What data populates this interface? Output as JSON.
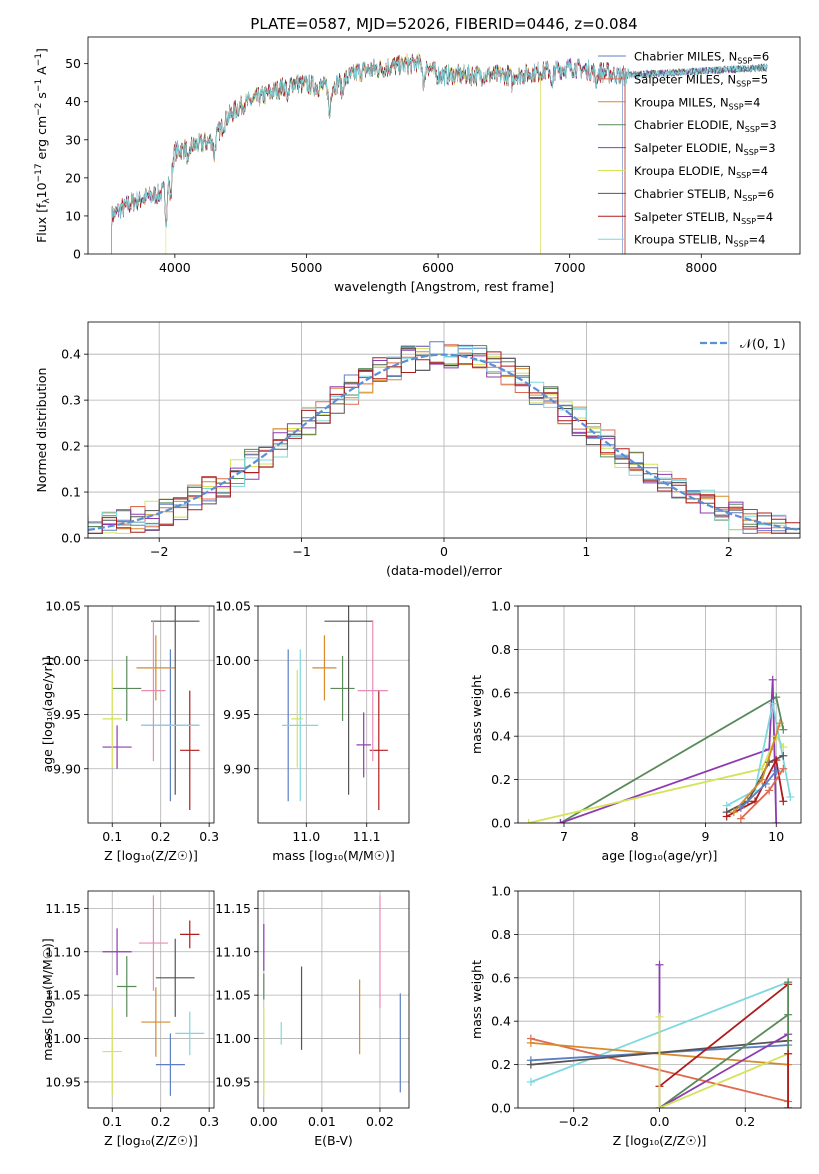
{
  "colors": {
    "Chabrier MILES": "#5b7fc4",
    "Salpeter MILES": "#e06a50",
    "Kroupa MILES": "#d68a2c",
    "Chabrier ELODIE": "#5a8a5a",
    "Salpeter ELODIE": "#8e3bb0",
    "Kroupa ELODIE": "#d4e35a",
    "Chabrier STELIB": "#555555",
    "Salpeter STELIB": "#b01c1c",
    "Kroupa STELIB": "#7fd8df",
    "pink": "#e98bb4",
    "gauss": "#5b8fd6"
  },
  "chart_data": [
    {
      "id": "spectrum",
      "type": "line",
      "title": "PLATE=0587, MJD=52026, FIBERID=0446, z=0.084",
      "xlabel": "wavelength [Angstrom, rest frame]",
      "ylabel_parts": [
        "Flux [f",
        "λ",
        "10",
        "−17",
        " erg cm",
        "−2",
        " s",
        "−1",
        " A",
        "−1",
        "]"
      ],
      "xlim": [
        3340,
        8750
      ],
      "ylim": [
        0,
        57
      ],
      "xticks": [
        "4000",
        "5000",
        "6000",
        "7000",
        "8000"
      ],
      "yticks": [
        "0",
        "10",
        "20",
        "30",
        "40",
        "50"
      ],
      "legend_position": "top-right",
      "legend": [
        {
          "base": "Chabrier MILES, N",
          "sub": "SSP",
          "end": "=6"
        },
        {
          "base": "Salpeter MILES, N",
          "sub": "SSP",
          "end": "=5"
        },
        {
          "base": "Kroupa MILES, N",
          "sub": "SSP",
          "end": "=4"
        },
        {
          "base": "Chabrier ELODIE, N",
          "sub": "SSP",
          "end": "=3"
        },
        {
          "base": "Salpeter ELODIE, N",
          "sub": "SSP",
          "end": "=3"
        },
        {
          "base": "Kroupa ELODIE, N",
          "sub": "SSP",
          "end": "=4"
        },
        {
          "base": "Chabrier STELIB, N",
          "sub": "SSP",
          "end": "=6"
        },
        {
          "base": "Salpeter STELIB, N",
          "sub": "SSP",
          "end": "=4"
        },
        {
          "base": "Kroupa STELIB, N",
          "sub": "SSP",
          "end": "=4"
        }
      ],
      "continuum": {
        "x": [
          3520,
          3600,
          3700,
          3800,
          3900,
          3950,
          4000,
          4100,
          4200,
          4300,
          4400,
          4500,
          4700,
          4900,
          5100,
          5200,
          5400,
          5600,
          5800,
          5900,
          6000,
          6200,
          6400,
          6600,
          6800,
          7000,
          7200,
          7400
        ],
        "y": [
          10,
          12,
          14,
          15,
          16,
          19,
          27,
          28,
          29,
          30,
          36,
          39,
          42,
          45,
          44,
          44,
          48,
          49,
          50,
          50,
          47,
          47,
          47,
          47,
          48,
          49,
          48,
          47
        ]
      },
      "ranges": {
        "Chabrier MILES": [
          3520,
          7400
        ],
        "Salpeter MILES": [
          3520,
          7420
        ],
        "Kroupa MILES": [
          3520,
          6780
        ],
        "Chabrier ELODIE": [
          3520,
          8500
        ],
        "Salpeter ELODIE": [
          3520,
          8500
        ],
        "Kroupa ELODIE": [
          3930,
          6780
        ],
        "Chabrier STELIB": [
          3520,
          8500
        ],
        "Salpeter STELIB": [
          3520,
          7420
        ],
        "Kroupa STELIB": [
          3520,
          8500
        ]
      }
    },
    {
      "id": "residuals",
      "type": "line",
      "xlabel": "(data-model)/error",
      "ylabel": "Normed distribution",
      "xlim": [
        -2.5,
        2.5
      ],
      "ylim": [
        0,
        0.47
      ],
      "xticks": [
        "−2",
        "−1",
        "0",
        "1",
        "2"
      ],
      "yticks": [
        "0.0",
        "0.1",
        "0.2",
        "0.3",
        "0.4"
      ],
      "legend_position": "top-right",
      "gauss_label": "𝒩(0, 1)",
      "bin_width": 0.1
    },
    {
      "id": "age-Z",
      "type": "scatter",
      "xlabel": "Z [log₁₀(Z/Z☉)]",
      "ylabel": "age  [log₁₀(age/yr)]",
      "xlim": [
        0.05,
        0.31
      ],
      "ylim": [
        9.85,
        10.05
      ],
      "xticks": [
        "0.1",
        "0.2",
        "0.3"
      ],
      "yticks": [
        "9.90",
        "9.95",
        "10.00",
        "10.05"
      ],
      "points": [
        {
          "s": "Chabrier MILES",
          "x": 0.22,
          "y": 9.94,
          "xe": 0.06,
          "ye": 0.07
        },
        {
          "s": "Salpeter MILES",
          "x": 0.17,
          "y": 9.97,
          "xe": 0.0,
          "ye": 0.0
        },
        {
          "s": "Kroupa MILES",
          "x": 0.19,
          "y": 9.993,
          "xe": 0.04,
          "ye": 0.03
        },
        {
          "s": "Chabrier ELODIE",
          "x": 0.13,
          "y": 9.974,
          "xe": 0.03,
          "ye": 0.03
        },
        {
          "s": "Salpeter ELODIE",
          "x": 0.11,
          "y": 9.92,
          "xe": 0.03,
          "ye": 0.02
        },
        {
          "s": "Kroupa ELODIE",
          "x": 0.1,
          "y": 9.946,
          "xe": 0.02,
          "ye": 0.045
        },
        {
          "s": "Chabrier STELIB",
          "x": 0.23,
          "y": 10.036,
          "xe": 0.05,
          "ye": 0.16
        },
        {
          "s": "Salpeter STELIB",
          "x": 0.26,
          "y": 9.917,
          "xe": 0.02,
          "ye": 0.055
        },
        {
          "s": "Kroupa STELIB",
          "x": 0.22,
          "y": 9.94,
          "xe": 0.06,
          "ye": 0.0
        },
        {
          "s": "pink",
          "x": 0.185,
          "y": 9.972,
          "xe": 0.025,
          "ye": 0.065
        }
      ]
    },
    {
      "id": "age-mass",
      "type": "scatter",
      "xlabel": "mass [log₁₀(M/M☉)]",
      "xlim": [
        10.92,
        11.17
      ],
      "ylim": [
        9.85,
        10.05
      ],
      "xticks": [
        "11.0",
        "11.1"
      ],
      "yticks": [
        "9.90",
        "9.95",
        "10.00",
        "10.05"
      ],
      "points": [
        {
          "s": "Chabrier MILES",
          "x": 10.97,
          "y": 9.94,
          "xe": 0.0,
          "ye": 0.07
        },
        {
          "s": "Kroupa MILES",
          "x": 11.03,
          "y": 9.993,
          "xe": 0.02,
          "ye": 0.03
        },
        {
          "s": "Chabrier ELODIE",
          "x": 11.06,
          "y": 9.974,
          "xe": 0.02,
          "ye": 0.03
        },
        {
          "s": "Salpeter ELODIE",
          "x": 11.095,
          "y": 9.922,
          "xe": 0.012,
          "ye": 0.03
        },
        {
          "s": "Kroupa ELODIE",
          "x": 10.985,
          "y": 9.946,
          "xe": 0.01,
          "ye": 0.045
        },
        {
          "s": "Chabrier STELIB",
          "x": 11.07,
          "y": 10.036,
          "xe": 0.04,
          "ye": 0.16
        },
        {
          "s": "Salpeter STELIB",
          "x": 11.12,
          "y": 9.917,
          "xe": 0.015,
          "ye": 0.055
        },
        {
          "s": "Kroupa STELIB",
          "x": 10.99,
          "y": 9.94,
          "xe": 0.03,
          "ye": 0.07
        },
        {
          "s": "pink",
          "x": 11.11,
          "y": 9.972,
          "xe": 0.025,
          "ye": 0.065
        }
      ]
    },
    {
      "id": "weight-age",
      "type": "line",
      "xlabel": "age  [log₁₀(age/yr)]",
      "ylabel": "mass weight",
      "xlim": [
        6.35,
        10.35
      ],
      "ylim": [
        0,
        1
      ],
      "xticks": [
        "7",
        "8",
        "9",
        "10"
      ],
      "yticks": [
        "0.0",
        "0.2",
        "0.4",
        "0.6",
        "0.8",
        "1.0"
      ],
      "series": [
        {
          "s": "Chabrier ELODIE",
          "x": [
            6.95,
            10.0,
            10.1
          ],
          "y": [
            0.0,
            0.58,
            0.43
          ]
        },
        {
          "s": "Salpeter ELODIE",
          "x": [
            6.95,
            9.9,
            9.95,
            10.0
          ],
          "y": [
            0.0,
            0.34,
            0.66,
            0.0
          ]
        },
        {
          "s": "Kroupa ELODIE",
          "x": [
            6.5,
            9.8,
            10.0,
            10.1
          ],
          "y": [
            0.0,
            0.25,
            0.4,
            0.35
          ]
        },
        {
          "s": "Kroupa STELIB",
          "x": [
            9.3,
            9.7,
            9.95,
            10.2
          ],
          "y": [
            0.08,
            0.15,
            0.55,
            0.12
          ]
        },
        {
          "s": "Chabrier STELIB",
          "x": [
            9.3,
            9.6,
            9.9,
            10.1
          ],
          "y": [
            0.05,
            0.1,
            0.28,
            0.31
          ]
        },
        {
          "s": "Salpeter STELIB",
          "x": [
            9.3,
            9.7,
            10.0,
            10.1
          ],
          "y": [
            0.03,
            0.1,
            0.29,
            0.1
          ]
        },
        {
          "s": "Kroupa MILES",
          "x": [
            9.4,
            9.8,
            10.05
          ],
          "y": [
            0.05,
            0.2,
            0.46
          ]
        },
        {
          "s": "Salpeter MILES",
          "x": [
            9.5,
            9.9,
            10.1
          ],
          "y": [
            0.02,
            0.15,
            0.25
          ]
        },
        {
          "s": "Chabrier MILES",
          "x": [
            9.5,
            9.85,
            10.0
          ],
          "y": [
            0.07,
            0.18,
            0.24
          ]
        }
      ]
    },
    {
      "id": "mass-Z",
      "type": "scatter",
      "xlabel": "Z [log₁₀(Z/Z☉)]",
      "ylabel": "mass [log₁₀(M/M☉)]",
      "xlim": [
        0.05,
        0.31
      ],
      "ylim": [
        10.92,
        11.17
      ],
      "xticks": [
        "0.1",
        "0.2",
        "0.3"
      ],
      "yticks": [
        "10.95",
        "11.00",
        "11.05",
        "11.10",
        "11.15"
      ],
      "points": [
        {
          "s": "Chabrier MILES",
          "x": 0.22,
          "y": 10.97,
          "xe": 0.03,
          "ye": 0.036
        },
        {
          "s": "Kroupa MILES",
          "x": 0.19,
          "y": 11.019,
          "xe": 0.03,
          "ye": 0.04
        },
        {
          "s": "Chabrier ELODIE",
          "x": 0.13,
          "y": 11.06,
          "xe": 0.02,
          "ye": 0.035
        },
        {
          "s": "Salpeter ELODIE",
          "x": 0.11,
          "y": 11.1,
          "xe": 0.03,
          "ye": 0.027
        },
        {
          "s": "Kroupa ELODIE",
          "x": 0.1,
          "y": 10.985,
          "xe": 0.02,
          "ye": 0.05
        },
        {
          "s": "Chabrier STELIB",
          "x": 0.23,
          "y": 11.07,
          "xe": 0.04,
          "ye": 0.045
        },
        {
          "s": "Salpeter STELIB",
          "x": 0.26,
          "y": 11.12,
          "xe": 0.02,
          "ye": 0.016
        },
        {
          "s": "Kroupa STELIB",
          "x": 0.26,
          "y": 11.006,
          "xe": 0.03,
          "ye": 0.025
        },
        {
          "s": "pink",
          "x": 0.185,
          "y": 11.11,
          "xe": 0.03,
          "ye": 0.055
        }
      ]
    },
    {
      "id": "mass-ebv",
      "type": "scatter",
      "xlabel": "E(B-V)",
      "xlim": [
        -0.001,
        0.025
      ],
      "ylim": [
        10.92,
        11.17
      ],
      "xticks": [
        "0.00",
        "0.01",
        "0.02"
      ],
      "yticks": [
        "10.95",
        "11.00",
        "11.05",
        "11.10",
        "11.15"
      ],
      "points": [
        {
          "s": "Salpeter ELODIE",
          "x": 0.0,
          "y": 11.105,
          "xe": 0.0,
          "ye": 0.027
        },
        {
          "s": "Kroupa ELODIE",
          "x": 0.0,
          "y": 10.985,
          "xe": 0.0,
          "ye": 0.05
        },
        {
          "s": "Chabrier ELODIE",
          "x": 0.0,
          "y": 11.06,
          "xe": 0.0,
          "ye": 0.015
        },
        {
          "s": "Kroupa STELIB",
          "x": 0.003,
          "y": 11.006,
          "xe": 0.0,
          "ye": 0.013
        },
        {
          "s": "Chabrier STELIB",
          "x": 0.0065,
          "y": 11.035,
          "xe": 0.0,
          "ye": 0.048
        },
        {
          "s": "Kroupa MILES",
          "x": 0.0165,
          "y": 11.025,
          "xe": 0.0,
          "ye": 0.043
        },
        {
          "s": "pink",
          "x": 0.02,
          "y": 11.1,
          "xe": 0.0,
          "ye": 0.065
        },
        {
          "s": "Chabrier MILES",
          "x": 0.0235,
          "y": 10.995,
          "xe": 0.0,
          "ye": 0.057
        }
      ]
    },
    {
      "id": "weight-Z",
      "type": "line",
      "xlabel": "Z [log₁₀(Z/Z☉)]",
      "ylabel": "mass weight",
      "xlim": [
        -0.33,
        0.33
      ],
      "ylim": [
        0,
        1
      ],
      "xticks": [
        "−0.2",
        "0.0",
        "0.2"
      ],
      "yticks": [
        "0.0",
        "0.2",
        "0.4",
        "0.6",
        "0.8",
        "1.0"
      ],
      "series": [
        {
          "s": "Kroupa STELIB",
          "x": [
            -0.3,
            0.3
          ],
          "y": [
            0.12,
            0.58
          ]
        },
        {
          "s": "Salpeter MILES",
          "x": [
            -0.3,
            0.3
          ],
          "y": [
            0.32,
            0.03
          ]
        },
        {
          "s": "Kroupa MILES",
          "x": [
            -0.3,
            0.3
          ],
          "y": [
            0.3,
            0.2
          ]
        },
        {
          "s": "Chabrier MILES",
          "x": [
            -0.3,
            0.3
          ],
          "y": [
            0.22,
            0.29
          ]
        },
        {
          "s": "Chabrier STELIB",
          "x": [
            -0.3,
            0.3
          ],
          "y": [
            0.2,
            0.31
          ]
        },
        {
          "s": "Salpeter STELIB",
          "x": [
            0.0,
            0.3
          ],
          "y": [
            0.1,
            0.57
          ]
        },
        {
          "s": "Chabrier ELODIE",
          "x": [
            0.0,
            0.3
          ],
          "y": [
            0.0,
            0.43
          ]
        },
        {
          "s": "Salpeter ELODIE",
          "x": [
            0.0,
            0.3
          ],
          "y": [
            0.0,
            0.34
          ]
        },
        {
          "s": "Kroupa ELODIE",
          "x": [
            0.0,
            0.3
          ],
          "y": [
            0.0,
            0.25
          ]
        },
        {
          "s": "Salpeter ELODIE",
          "x": [
            0.0,
            0.0
          ],
          "y": [
            0.0,
            0.66
          ]
        },
        {
          "s": "Kroupa ELODIE",
          "x": [
            0.0,
            0.0
          ],
          "y": [
            0.0,
            0.42
          ]
        },
        {
          "s": "Chabrier ELODIE",
          "x": [
            0.3,
            0.3
          ],
          "y": [
            0.0,
            0.58
          ]
        },
        {
          "s": "Salpeter STELIB",
          "x": [
            0.3,
            0.3
          ],
          "y": [
            0.0,
            0.25
          ]
        }
      ]
    }
  ]
}
